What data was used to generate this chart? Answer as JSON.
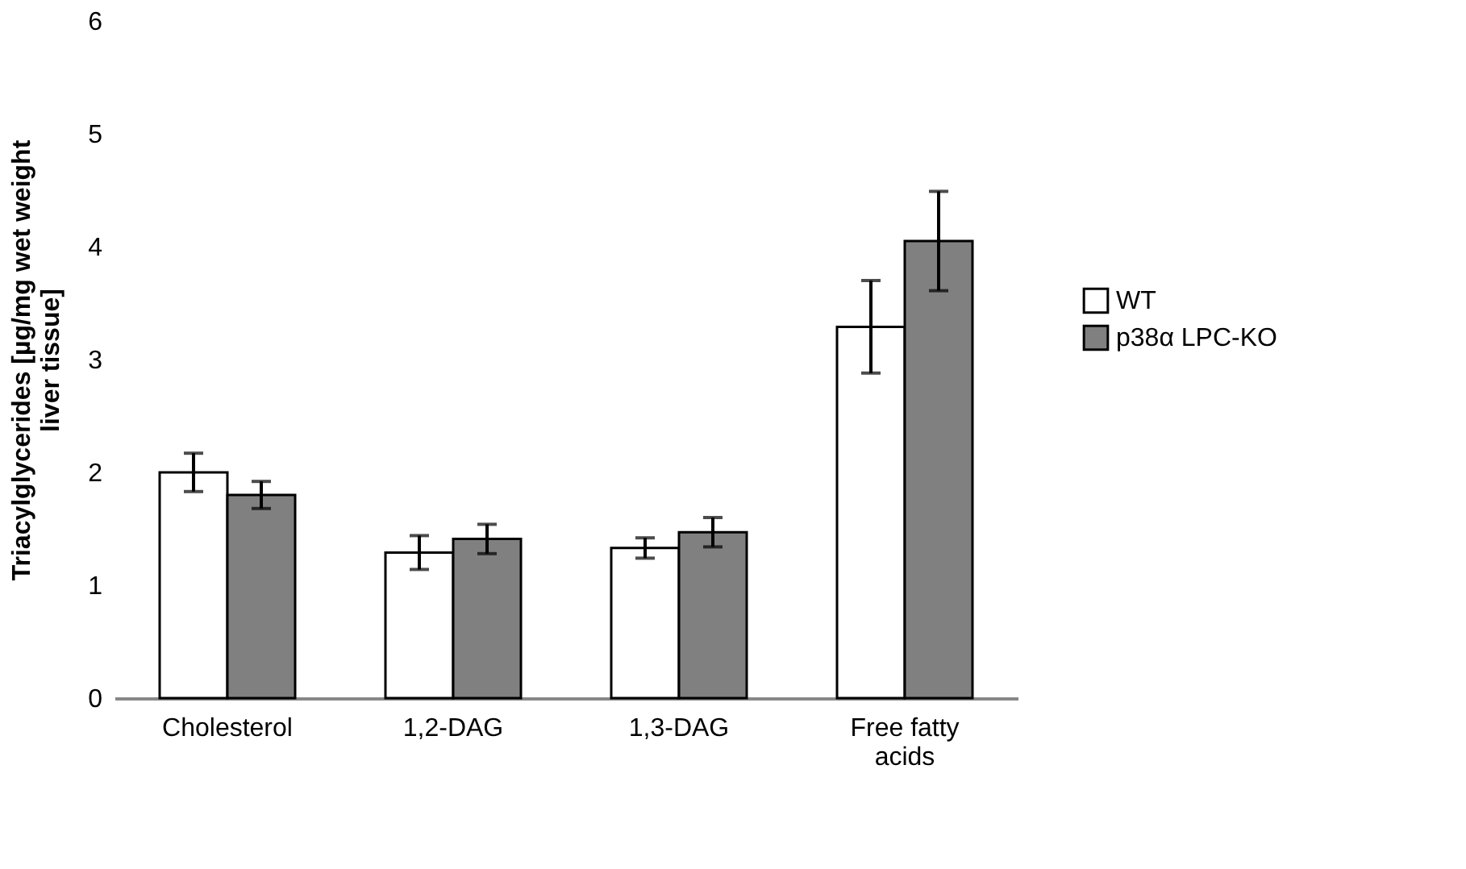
{
  "chart_data": {
    "type": "bar",
    "ylabel": "Triacylglycerides [µg/mg wet weight liver tissue]",
    "categories": [
      "Cholesterol",
      "1,2-DAG",
      "1,3-DAG",
      "Free fatty acids"
    ],
    "series": [
      {
        "name": "WT",
        "color": "#ffffff",
        "values": [
          2.0,
          1.29,
          1.33,
          3.29
        ],
        "errors": [
          0.17,
          0.15,
          0.09,
          0.41
        ]
      },
      {
        "name": "p38α LPC-KO",
        "color": "#808080",
        "values": [
          1.8,
          1.41,
          1.47,
          4.05
        ],
        "errors": [
          0.12,
          0.13,
          0.13,
          0.44
        ]
      }
    ],
    "ylim": [
      0,
      6
    ],
    "yticks": [
      0,
      1,
      2,
      3,
      4,
      5,
      6
    ],
    "grid": false,
    "legend": "right"
  }
}
